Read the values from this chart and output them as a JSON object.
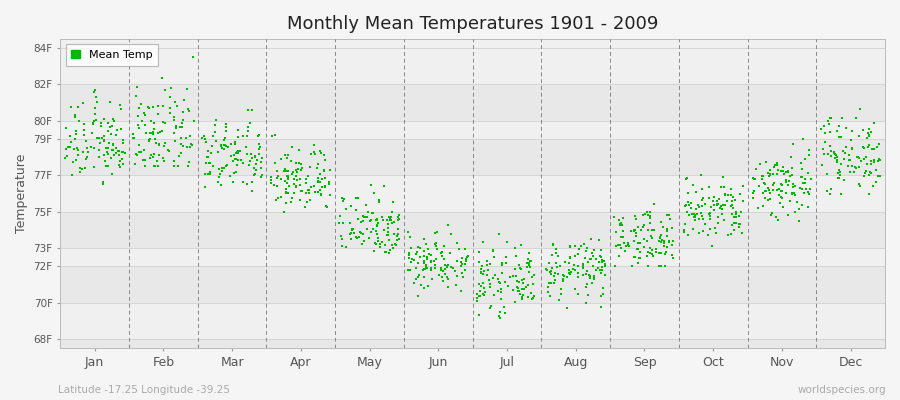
{
  "title": "Monthly Mean Temperatures 1901 - 2009",
  "ylabel": "Temperature",
  "xlabel_latitude": "Latitude -17.25 Longitude -39.25",
  "watermark": "worldspecies.org",
  "legend_label": "Mean Temp",
  "dot_color": "#00bb00",
  "bg_color": "#f5f5f5",
  "band_light": "#f0f0f0",
  "band_dark": "#e8e8e8",
  "ytick_values": [
    68,
    70,
    72,
    73,
    75,
    77,
    79,
    80,
    82,
    84
  ],
  "ytick_labels": [
    "68F",
    "70F",
    "72F",
    "73F",
    "75F",
    "77F",
    "79F",
    "80F",
    "82F",
    "84F"
  ],
  "ylim": [
    67.5,
    84.5
  ],
  "months": [
    "Jan",
    "Feb",
    "Mar",
    "Apr",
    "May",
    "Jun",
    "Jul",
    "Aug",
    "Sep",
    "Oct",
    "Nov",
    "Dec"
  ],
  "n_years": 109,
  "monthly_mean": [
    78.8,
    79.2,
    78.0,
    76.8,
    74.3,
    72.3,
    71.2,
    71.8,
    73.5,
    75.0,
    76.5,
    78.2
  ],
  "monthly_std": [
    1.1,
    1.2,
    1.0,
    0.9,
    0.9,
    0.8,
    0.8,
    0.8,
    0.8,
    0.9,
    1.0,
    1.1
  ],
  "monthly_min_clip": [
    76.5,
    77.5,
    76.0,
    74.5,
    72.5,
    70.0,
    68.8,
    69.0,
    72.0,
    73.0,
    74.5,
    76.0
  ],
  "monthly_max_clip": [
    83.5,
    83.5,
    82.5,
    80.5,
    77.5,
    74.5,
    73.8,
    73.5,
    75.5,
    77.2,
    79.0,
    81.5
  ]
}
